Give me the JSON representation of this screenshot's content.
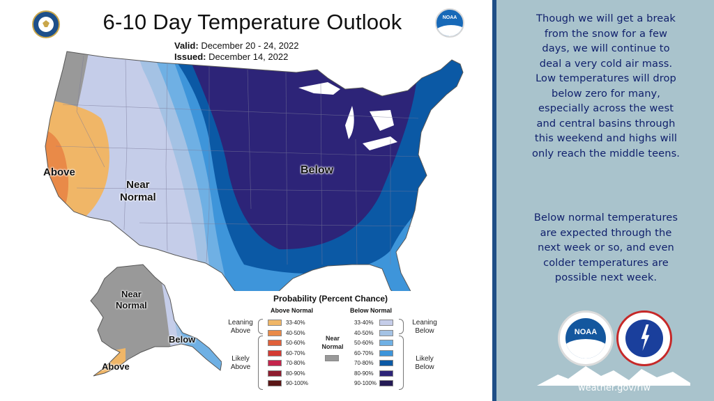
{
  "header": {
    "title": "6-10 Day Temperature Outlook",
    "valid_label": "Valid:",
    "valid_value": "December 20 - 24, 2022",
    "issued_label": "Issued:",
    "issued_value": "December 14, 2022"
  },
  "logos": {
    "noaa_small_text": "NOAA",
    "noaa_big_text": "NOAA",
    "nws_text": "NATIONAL WEATHER SERVICE"
  },
  "map_labels": {
    "above": "Above",
    "near_line1": "Near",
    "near_line2": "Normal",
    "below": "Below",
    "ak_near_line1": "Near",
    "ak_near_line2": "Normal",
    "ak_below": "Below",
    "ak_above": "Above"
  },
  "colors": {
    "above_33_40": "#f0b667",
    "above_40_50": "#e98a48",
    "above_50_60": "#e0603a",
    "above_60_70": "#d33b33",
    "above_70_80": "#c4244b",
    "above_80_90": "#8e1c2e",
    "above_90_100": "#5a1616",
    "near_normal": "#999999",
    "below_33_40": "#c5cde9",
    "below_40_50": "#a4c2e4",
    "below_50_60": "#6fb0e4",
    "below_60_70": "#3e95da",
    "below_70_80": "#0b59a5",
    "below_80_90": "#2d2478",
    "below_90_100": "#241a55",
    "side_bg": "#a9c3cc",
    "side_text": "#0f1f6b",
    "stripe": "#1f4e86"
  },
  "legend": {
    "title": "Probability (Percent Chance)",
    "above_header": "Above Normal",
    "below_header": "Below Normal",
    "above_rows": [
      "33-40%",
      "40-50%",
      "50-60%",
      "60-70%",
      "70-80%",
      "80-90%",
      "90-100%"
    ],
    "below_rows": [
      "33-40%",
      "40-50%",
      "50-60%",
      "60-70%",
      "70-80%",
      "80-90%",
      "90-100%"
    ],
    "near_line1": "Near",
    "near_line2": "Normal",
    "leaning_above_1": "Leaning",
    "leaning_above_2": "Above",
    "likely_above_1": "Likely",
    "likely_above_2": "Above",
    "leaning_below_1": "Leaning",
    "leaning_below_2": "Below",
    "likely_below_1": "Likely",
    "likely_below_2": "Below"
  },
  "side": {
    "para1_lines": [
      "Though we will get a break",
      "from the snow for a few",
      "days, we will continue to",
      "deal a very cold air mass.",
      "Low temperatures will drop",
      "below zero for many,",
      "especially across the west",
      "and central basins through",
      "this weekend and highs will",
      "only reach the middle teens."
    ],
    "para2_lines": [
      "Below normal temperatures",
      "are expected through the",
      "next week or so, and even",
      "colder temperatures are",
      "possible next week."
    ],
    "url": "weather.gov/riw"
  }
}
